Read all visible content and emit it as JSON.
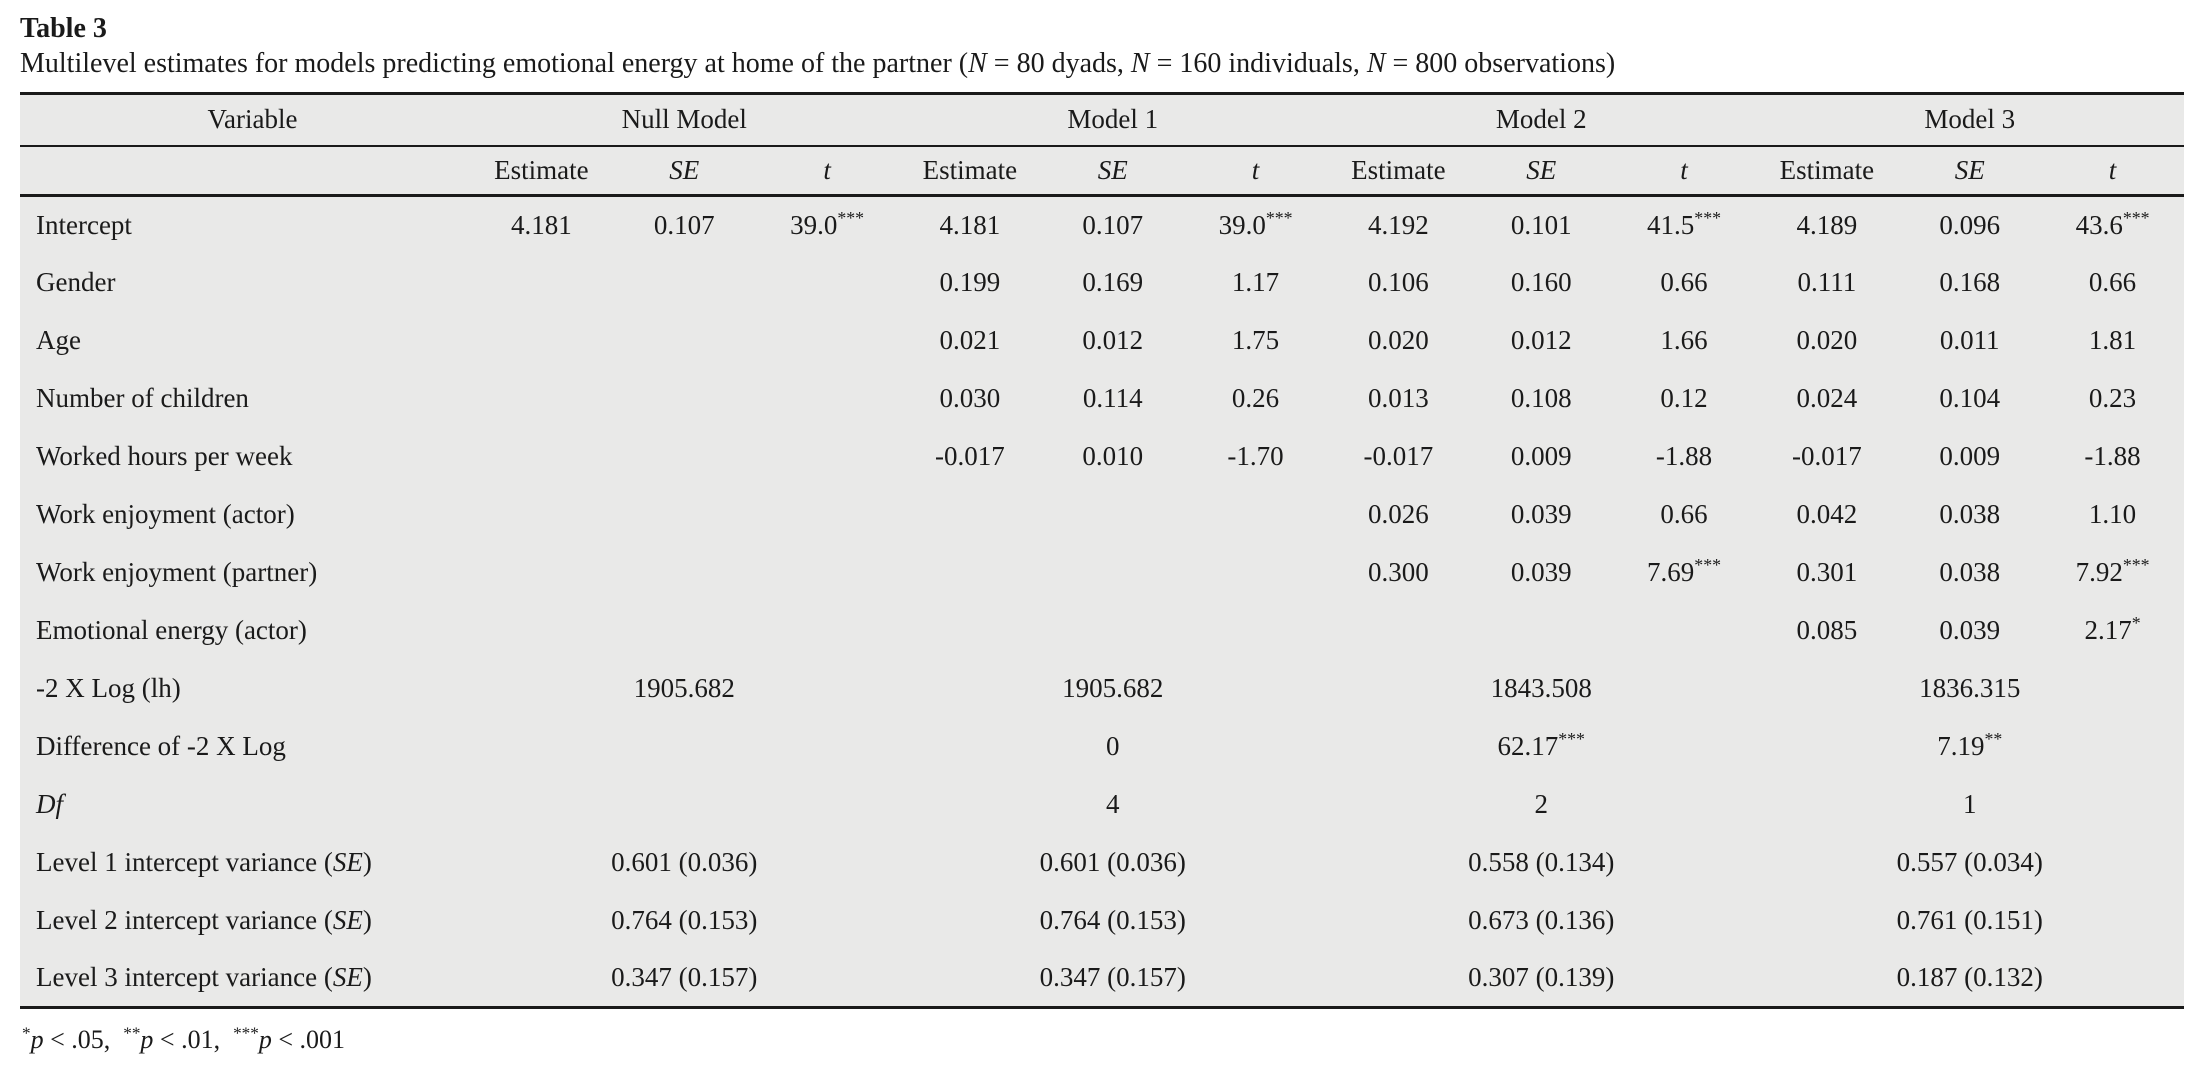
{
  "colors": {
    "page_bg": "#ffffff",
    "table_bg": "#e9e9e8",
    "rule": "#1a1a1a",
    "text": "#1a1a1a"
  },
  "caption": {
    "title": "Table 3",
    "subtitle": "Multilevel estimates for models predicting emotional energy at home of the partner (_N_ = 80 dyads, _N_ = 160 individuals, _N_ = 800 observations)"
  },
  "table": {
    "variable_header": "Variable",
    "model_headers": [
      "Null Model",
      "Model 1",
      "Model 2",
      "Model 3"
    ],
    "stat_headers": [
      "Estimate",
      "_SE_",
      "_t_"
    ],
    "rows": [
      {
        "label": "Intercept",
        "type": "cols",
        "groups": [
          [
            "4.181",
            "0.107",
            "39.0^***"
          ],
          [
            "4.181",
            "0.107",
            "39.0^***"
          ],
          [
            "4.192",
            "0.101",
            "41.5^***"
          ],
          [
            "4.189",
            "0.096",
            "43.6^***"
          ]
        ]
      },
      {
        "label": "Gender",
        "type": "cols",
        "groups": [
          [
            "",
            "",
            ""
          ],
          [
            "0.199",
            "0.169",
            "1.17"
          ],
          [
            "0.106",
            "0.160",
            "0.66"
          ],
          [
            "0.111",
            "0.168",
            "0.66"
          ]
        ]
      },
      {
        "label": "Age",
        "type": "cols",
        "groups": [
          [
            "",
            "",
            ""
          ],
          [
            "0.021",
            "0.012",
            "1.75"
          ],
          [
            "0.020",
            "0.012",
            "1.66"
          ],
          [
            "0.020",
            "0.011",
            "1.81"
          ]
        ]
      },
      {
        "label": "Number of children",
        "type": "cols",
        "groups": [
          [
            "",
            "",
            ""
          ],
          [
            "0.030",
            "0.114",
            "0.26"
          ],
          [
            "0.013",
            "0.108",
            "0.12"
          ],
          [
            "0.024",
            "0.104",
            "0.23"
          ]
        ]
      },
      {
        "label": "Worked hours per week",
        "type": "cols",
        "groups": [
          [
            "",
            "",
            ""
          ],
          [
            "-0.017",
            "0.010",
            "-1.70"
          ],
          [
            "-0.017",
            "0.009",
            "-1.88"
          ],
          [
            "-0.017",
            "0.009",
            "-1.88"
          ]
        ]
      },
      {
        "label": "Work enjoyment (actor)",
        "type": "cols",
        "groups": [
          [
            "",
            "",
            ""
          ],
          [
            "",
            "",
            ""
          ],
          [
            "0.026",
            "0.039",
            "0.66"
          ],
          [
            "0.042",
            "0.038",
            "1.10"
          ]
        ]
      },
      {
        "label": "Work enjoyment (partner)",
        "type": "cols",
        "groups": [
          [
            "",
            "",
            ""
          ],
          [
            "",
            "",
            ""
          ],
          [
            "0.300",
            "0.039",
            "7.69^***"
          ],
          [
            "0.301",
            "0.038",
            "7.92^***"
          ]
        ]
      },
      {
        "label": "Emotional energy (actor)",
        "type": "cols",
        "groups": [
          [
            "",
            "",
            ""
          ],
          [
            "",
            "",
            ""
          ],
          [
            "",
            "",
            ""
          ],
          [
            "0.085",
            "0.039",
            "2.17^*"
          ]
        ]
      },
      {
        "label": "-2 X Log (lh)",
        "type": "span",
        "groups": [
          "1905.682",
          "1905.682",
          "1843.508",
          "1836.315"
        ]
      },
      {
        "label": "Difference of -2 X Log",
        "type": "span",
        "groups": [
          "",
          "0",
          "62.17^***",
          "7.19^**"
        ]
      },
      {
        "label": "_Df_",
        "type": "span",
        "groups": [
          "",
          "4",
          "2",
          "1"
        ]
      },
      {
        "label": "Level 1 intercept variance (_SE_)",
        "type": "span",
        "groups": [
          "0.601 (0.036)",
          "0.601 (0.036)",
          "0.558 (0.134)",
          "0.557 (0.034)"
        ]
      },
      {
        "label": "Level 2 intercept variance (_SE_)",
        "type": "span",
        "groups": [
          "0.764 (0.153)",
          "0.764 (0.153)",
          "0.673 (0.136)",
          "0.761 (0.151)"
        ]
      },
      {
        "label": "Level 3 intercept variance (_SE_)",
        "type": "span",
        "groups": [
          "0.347 (0.157)",
          "0.347 (0.157)",
          "0.307 (0.139)",
          "0.187 (0.132)"
        ]
      }
    ]
  },
  "footnote": "^*_p_ < .05,  ^**_p_ < .01,  ^***_p_ < .001"
}
